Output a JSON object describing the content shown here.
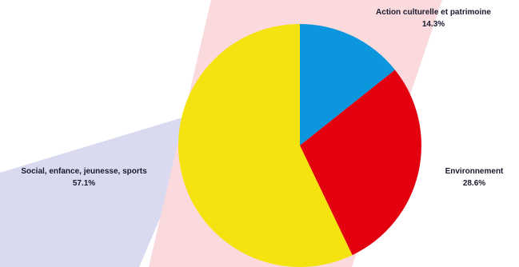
{
  "chart_data": {
    "type": "pie",
    "title": "",
    "slices": [
      {
        "label": "Action culturelle et patrimoine",
        "value": 14.3,
        "value_label": "14.3%",
        "color": "#0b96dd"
      },
      {
        "label": "Environnement",
        "value": 28.6,
        "value_label": "28.6%",
        "color": "#e3000f"
      },
      {
        "label": "Social, enfance, jeunesse, sports",
        "value": 57.1,
        "value_label": "57.1%",
        "color": "#f5e30f"
      }
    ],
    "start_angle_deg": 0,
    "direction": "clockwise",
    "legend": "none",
    "label_placement": "outside"
  },
  "background": {
    "band_colors": [
      "#d9d9ef",
      "#fadadd"
    ]
  }
}
